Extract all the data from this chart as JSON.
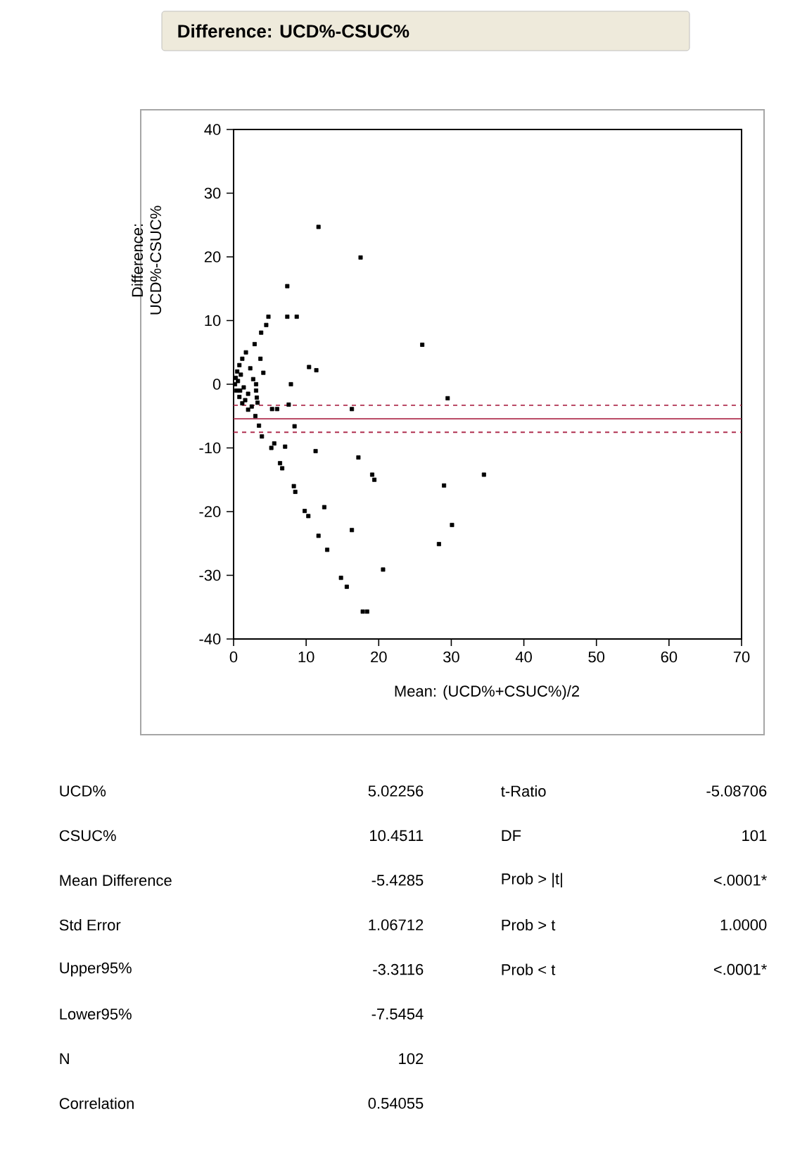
{
  "chart_data": {
    "type": "scatter",
    "title": "Difference: UCD%-CSUC%",
    "xlabel": "Mean: (UCD%+CSUC%)/2",
    "ylabel": "Difference: UCD%-CSUC%",
    "x": [
      11.7,
      17.5,
      7.4,
      7.4,
      8.7,
      4.8,
      4.5,
      3.8,
      2.9,
      26.0,
      3.7,
      10.4,
      11.4,
      4.1,
      3.1,
      7.9,
      3.2,
      29.5,
      7.6,
      5.3,
      6.0,
      16.3,
      8.4,
      3.9,
      5.6,
      5.2,
      7.1,
      11.3,
      6.4,
      6.7,
      17.2,
      19.1,
      19.4,
      34.5,
      29.0,
      8.3,
      8.5,
      12.5,
      9.8,
      10.3,
      30.1,
      16.3,
      11.7,
      28.3,
      12.9,
      20.6,
      14.8,
      15.6,
      17.8,
      18.4,
      0.3,
      0.5,
      0.8,
      1.2,
      1.7,
      0.4,
      0.8,
      1.2,
      0.2,
      0.6,
      1.0,
      1.4,
      2.0,
      2.3,
      2.7,
      3.1,
      2.5,
      3.0,
      3.5,
      2.0,
      1.6,
      0.9,
      3.3
    ],
    "values": [
      24.7,
      19.9,
      15.4,
      10.6,
      10.6,
      10.6,
      9.3,
      8.1,
      6.3,
      6.2,
      4.0,
      2.7,
      2.2,
      1.8,
      0.0,
      0.0,
      -2.1,
      -2.2,
      -3.2,
      -3.9,
      -3.9,
      -3.9,
      -6.6,
      -8.2,
      -9.3,
      -10.0,
      -9.8,
      -10.5,
      -12.4,
      -13.2,
      -11.5,
      -14.2,
      -15.0,
      -14.2,
      -15.9,
      -16.0,
      -16.9,
      -19.3,
      -19.9,
      -20.7,
      -22.1,
      -22.9,
      -23.8,
      -25.1,
      -26.0,
      -29.1,
      -30.4,
      -31.8,
      -35.7,
      -35.7,
      1.0,
      2.0,
      3.0,
      4.0,
      5.0,
      -1.0,
      -2.0,
      -3.0,
      0.0,
      0.5,
      1.5,
      -0.5,
      -1.5,
      2.5,
      0.8,
      -1.0,
      -3.5,
      -5.0,
      -6.5,
      -4.0,
      -2.5,
      -1.0,
      -2.9
    ],
    "color": "#000000",
    "marker": "square",
    "xlim": [
      0,
      70
    ],
    "ylim": [
      -40,
      40
    ],
    "xticks": [
      0,
      10,
      20,
      30,
      40,
      50,
      60,
      70
    ],
    "yticks": [
      -40,
      -30,
      -20,
      -10,
      0,
      10,
      20,
      30,
      40
    ],
    "ref_lines": [
      {
        "axis": "y",
        "value": -5.4285,
        "color": "#b03050",
        "line_style": "solid"
      },
      {
        "axis": "y",
        "value": -3.3116,
        "color": "#b03050",
        "line_style": "dashed"
      },
      {
        "axis": "y",
        "value": -7.5454,
        "color": "#b03050",
        "line_style": "dashed"
      }
    ],
    "annotations": [
      "UCD%",
      "5.02256",
      "CSUC%",
      "10.4511",
      "Mean Difference",
      "-5.4285",
      "Std Error",
      "1.06712",
      "Upper95%",
      "-3.3116",
      "Lower95%",
      "-7.5454",
      "N",
      "102",
      "Correlation",
      "0.54055",
      "t-Ratio",
      "-5.08706",
      "DF",
      "101",
      "Prob > |t|",
      "<.0001*",
      "Prob > t",
      "1.0000",
      "Prob < t",
      "<.0001*"
    ]
  }
}
